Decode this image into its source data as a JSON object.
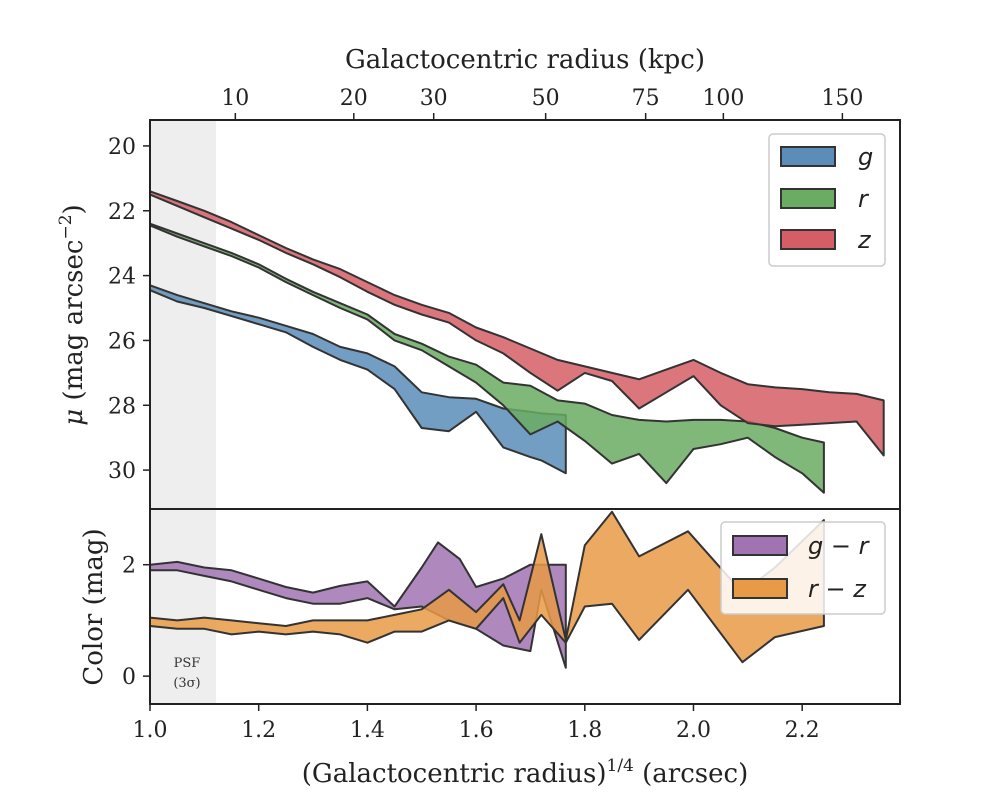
{
  "chart_data": [
    {
      "type": "area",
      "panel": "surface-brightness",
      "ylabel": "μ (mag arcsec⁻²)",
      "top_axis_label": "Galactocentric radius (kpc)",
      "top_ticks": [
        {
          "label": "10",
          "x": 1.157
        },
        {
          "label": "20",
          "x": 1.375
        },
        {
          "label": "30",
          "x": 1.522
        },
        {
          "label": "50",
          "x": 1.728
        },
        {
          "label": "75",
          "x": 1.912
        },
        {
          "label": "100",
          "x": 2.055
        },
        {
          "label": "150",
          "x": 2.274
        }
      ],
      "xlim": [
        1.0,
        2.38
      ],
      "ylim": [
        31.2,
        19.2
      ],
      "y_inverted": true,
      "yticks": [
        20,
        22,
        24,
        26,
        28,
        30
      ],
      "legend_position": "top-right",
      "series": [
        {
          "name": "g",
          "color": "#5b8db8",
          "upper": [
            [
              1.0,
              24.3
            ],
            [
              1.05,
              24.6
            ],
            [
              1.1,
              24.85
            ],
            [
              1.15,
              25.1
            ],
            [
              1.2,
              25.3
            ],
            [
              1.25,
              25.55
            ],
            [
              1.3,
              25.8
            ],
            [
              1.35,
              26.2
            ],
            [
              1.4,
              26.4
            ],
            [
              1.45,
              26.8
            ],
            [
              1.5,
              27.6
            ],
            [
              1.55,
              27.75
            ],
            [
              1.6,
              27.8
            ],
            [
              1.65,
              28.1
            ],
            [
              1.7,
              28.2
            ],
            [
              1.72,
              28.25
            ],
            [
              1.765,
              28.3
            ]
          ],
          "lower": [
            [
              1.0,
              24.45
            ],
            [
              1.05,
              24.8
            ],
            [
              1.1,
              25.0
            ],
            [
              1.15,
              25.25
            ],
            [
              1.2,
              25.5
            ],
            [
              1.25,
              25.75
            ],
            [
              1.3,
              26.2
            ],
            [
              1.35,
              26.6
            ],
            [
              1.4,
              26.9
            ],
            [
              1.45,
              27.5
            ],
            [
              1.5,
              28.7
            ],
            [
              1.55,
              28.8
            ],
            [
              1.6,
              28.2
            ],
            [
              1.65,
              29.3
            ],
            [
              1.7,
              29.6
            ],
            [
              1.72,
              29.7
            ],
            [
              1.765,
              30.1
            ]
          ]
        },
        {
          "name": "r",
          "color": "#6aac62",
          "upper": [
            [
              1.0,
              22.4
            ],
            [
              1.05,
              22.7
            ],
            [
              1.1,
              23.0
            ],
            [
              1.15,
              23.3
            ],
            [
              1.2,
              23.65
            ],
            [
              1.25,
              24.1
            ],
            [
              1.3,
              24.5
            ],
            [
              1.35,
              24.85
            ],
            [
              1.4,
              25.2
            ],
            [
              1.45,
              25.8
            ],
            [
              1.5,
              26.1
            ],
            [
              1.55,
              26.5
            ],
            [
              1.6,
              26.75
            ],
            [
              1.65,
              27.3
            ],
            [
              1.7,
              27.4
            ],
            [
              1.75,
              27.85
            ],
            [
              1.8,
              27.95
            ],
            [
              1.85,
              28.3
            ],
            [
              1.9,
              28.45
            ],
            [
              1.95,
              28.5
            ],
            [
              2.0,
              28.45
            ],
            [
              2.05,
              28.45
            ],
            [
              2.1,
              28.5
            ],
            [
              2.15,
              28.7
            ],
            [
              2.2,
              29.0
            ],
            [
              2.24,
              29.15
            ]
          ],
          "lower": [
            [
              1.0,
              22.45
            ],
            [
              1.05,
              22.8
            ],
            [
              1.1,
              23.1
            ],
            [
              1.15,
              23.4
            ],
            [
              1.2,
              23.75
            ],
            [
              1.25,
              24.2
            ],
            [
              1.3,
              24.6
            ],
            [
              1.35,
              25.0
            ],
            [
              1.4,
              25.35
            ],
            [
              1.45,
              26.0
            ],
            [
              1.5,
              26.3
            ],
            [
              1.55,
              26.8
            ],
            [
              1.6,
              27.3
            ],
            [
              1.65,
              28.0
            ],
            [
              1.7,
              28.9
            ],
            [
              1.75,
              28.5
            ],
            [
              1.8,
              29.1
            ],
            [
              1.85,
              29.8
            ],
            [
              1.9,
              29.5
            ],
            [
              1.95,
              30.4
            ],
            [
              2.0,
              29.35
            ],
            [
              2.05,
              29.2
            ],
            [
              2.1,
              29.0
            ],
            [
              2.15,
              29.6
            ],
            [
              2.2,
              30.1
            ],
            [
              2.24,
              30.7
            ]
          ]
        },
        {
          "name": "z",
          "color": "#d55e66",
          "upper": [
            [
              1.0,
              21.4
            ],
            [
              1.05,
              21.7
            ],
            [
              1.1,
              22.0
            ],
            [
              1.15,
              22.35
            ],
            [
              1.2,
              22.75
            ],
            [
              1.25,
              23.15
            ],
            [
              1.3,
              23.5
            ],
            [
              1.35,
              23.8
            ],
            [
              1.4,
              24.2
            ],
            [
              1.45,
              24.6
            ],
            [
              1.5,
              24.9
            ],
            [
              1.55,
              25.15
            ],
            [
              1.6,
              25.6
            ],
            [
              1.65,
              25.9
            ],
            [
              1.7,
              26.25
            ],
            [
              1.75,
              26.6
            ],
            [
              1.8,
              26.8
            ],
            [
              1.85,
              27.0
            ],
            [
              1.9,
              27.2
            ],
            [
              1.95,
              26.9
            ],
            [
              2.0,
              26.6
            ],
            [
              2.05,
              27.0
            ],
            [
              2.1,
              27.35
            ],
            [
              2.15,
              27.45
            ],
            [
              2.2,
              27.5
            ],
            [
              2.25,
              27.6
            ],
            [
              2.3,
              27.65
            ],
            [
              2.35,
              27.85
            ]
          ],
          "lower": [
            [
              1.0,
              21.5
            ],
            [
              1.05,
              21.85
            ],
            [
              1.1,
              22.2
            ],
            [
              1.15,
              22.55
            ],
            [
              1.2,
              22.9
            ],
            [
              1.25,
              23.3
            ],
            [
              1.3,
              23.65
            ],
            [
              1.35,
              24.05
            ],
            [
              1.4,
              24.5
            ],
            [
              1.45,
              24.9
            ],
            [
              1.5,
              25.2
            ],
            [
              1.55,
              25.45
            ],
            [
              1.6,
              26.0
            ],
            [
              1.65,
              26.4
            ],
            [
              1.7,
              27.0
            ],
            [
              1.75,
              27.55
            ],
            [
              1.8,
              27.0
            ],
            [
              1.85,
              27.25
            ],
            [
              1.9,
              28.1
            ],
            [
              1.95,
              27.6
            ],
            [
              2.0,
              27.1
            ],
            [
              2.05,
              28.0
            ],
            [
              2.1,
              28.55
            ],
            [
              2.15,
              28.65
            ],
            [
              2.2,
              28.6
            ],
            [
              2.25,
              28.55
            ],
            [
              2.3,
              28.5
            ],
            [
              2.35,
              29.55
            ]
          ]
        }
      ]
    },
    {
      "type": "area",
      "panel": "color",
      "xlabel": "(Galactocentric radius)^1/4 (arcsec)",
      "ylabel": "Color (mag)",
      "xlim": [
        1.0,
        2.38
      ],
      "ylim": [
        -0.5,
        3.0
      ],
      "xticks": [
        1.0,
        1.2,
        1.4,
        1.6,
        1.8,
        2.0,
        2.2
      ],
      "xtick_labels": [
        "1.0",
        "1.2",
        "1.4",
        "1.6",
        "1.8",
        "2.0",
        "2.2"
      ],
      "yticks": [
        0,
        2
      ],
      "legend_position": "top-right",
      "psf_region": {
        "x": [
          1.0,
          1.12
        ],
        "label_line1": "PSF",
        "label_line2": "(3σ)"
      },
      "series": [
        {
          "name": "g − r",
          "color": "#a173b3",
          "upper": [
            [
              1.0,
              2.0
            ],
            [
              1.05,
              2.05
            ],
            [
              1.1,
              1.95
            ],
            [
              1.15,
              1.9
            ],
            [
              1.2,
              1.75
            ],
            [
              1.25,
              1.6
            ],
            [
              1.3,
              1.5
            ],
            [
              1.35,
              1.62
            ],
            [
              1.4,
              1.7
            ],
            [
              1.45,
              1.25
            ],
            [
              1.5,
              1.95
            ],
            [
              1.53,
              2.4
            ],
            [
              1.57,
              2.1
            ],
            [
              1.6,
              1.6
            ],
            [
              1.65,
              1.75
            ],
            [
              1.7,
              2.0
            ],
            [
              1.765,
              2.0
            ]
          ],
          "lower": [
            [
              1.0,
              1.9
            ],
            [
              1.05,
              1.9
            ],
            [
              1.1,
              1.8
            ],
            [
              1.15,
              1.7
            ],
            [
              1.2,
              1.55
            ],
            [
              1.25,
              1.4
            ],
            [
              1.3,
              1.3
            ],
            [
              1.35,
              1.3
            ],
            [
              1.4,
              1.4
            ],
            [
              1.45,
              1.2
            ],
            [
              1.5,
              1.25
            ],
            [
              1.55,
              1.0
            ],
            [
              1.6,
              0.85
            ],
            [
              1.65,
              0.55
            ],
            [
              1.7,
              0.45
            ],
            [
              1.72,
              1.55
            ],
            [
              1.765,
              0.15
            ]
          ]
        },
        {
          "name": "r − z",
          "color": "#e89a46",
          "upper": [
            [
              1.0,
              1.05
            ],
            [
              1.05,
              1.0
            ],
            [
              1.1,
              1.05
            ],
            [
              1.15,
              1.0
            ],
            [
              1.2,
              0.95
            ],
            [
              1.25,
              0.9
            ],
            [
              1.3,
              1.0
            ],
            [
              1.35,
              1.0
            ],
            [
              1.4,
              1.0
            ],
            [
              1.45,
              1.1
            ],
            [
              1.5,
              1.2
            ],
            [
              1.55,
              1.55
            ],
            [
              1.6,
              1.15
            ],
            [
              1.65,
              1.65
            ],
            [
              1.68,
              1.0
            ],
            [
              1.72,
              2.55
            ],
            [
              1.765,
              0.65
            ],
            [
              1.8,
              2.35
            ],
            [
              1.85,
              2.95
            ],
            [
              1.9,
              2.15
            ],
            [
              1.99,
              2.6
            ],
            [
              2.09,
              1.5
            ],
            [
              2.15,
              1.95
            ],
            [
              2.24,
              2.8
            ]
          ],
          "lower": [
            [
              1.0,
              0.9
            ],
            [
              1.05,
              0.85
            ],
            [
              1.1,
              0.85
            ],
            [
              1.15,
              0.75
            ],
            [
              1.2,
              0.8
            ],
            [
              1.25,
              0.75
            ],
            [
              1.3,
              0.8
            ],
            [
              1.35,
              0.75
            ],
            [
              1.4,
              0.6
            ],
            [
              1.45,
              0.8
            ],
            [
              1.5,
              0.8
            ],
            [
              1.55,
              1.0
            ],
            [
              1.6,
              0.85
            ],
            [
              1.65,
              1.4
            ],
            [
              1.68,
              0.6
            ],
            [
              1.72,
              1.1
            ],
            [
              1.765,
              0.6
            ],
            [
              1.8,
              1.25
            ],
            [
              1.85,
              1.3
            ],
            [
              1.9,
              0.65
            ],
            [
              1.99,
              1.55
            ],
            [
              2.09,
              0.25
            ],
            [
              2.15,
              0.7
            ],
            [
              2.24,
              0.9
            ]
          ]
        }
      ]
    }
  ]
}
